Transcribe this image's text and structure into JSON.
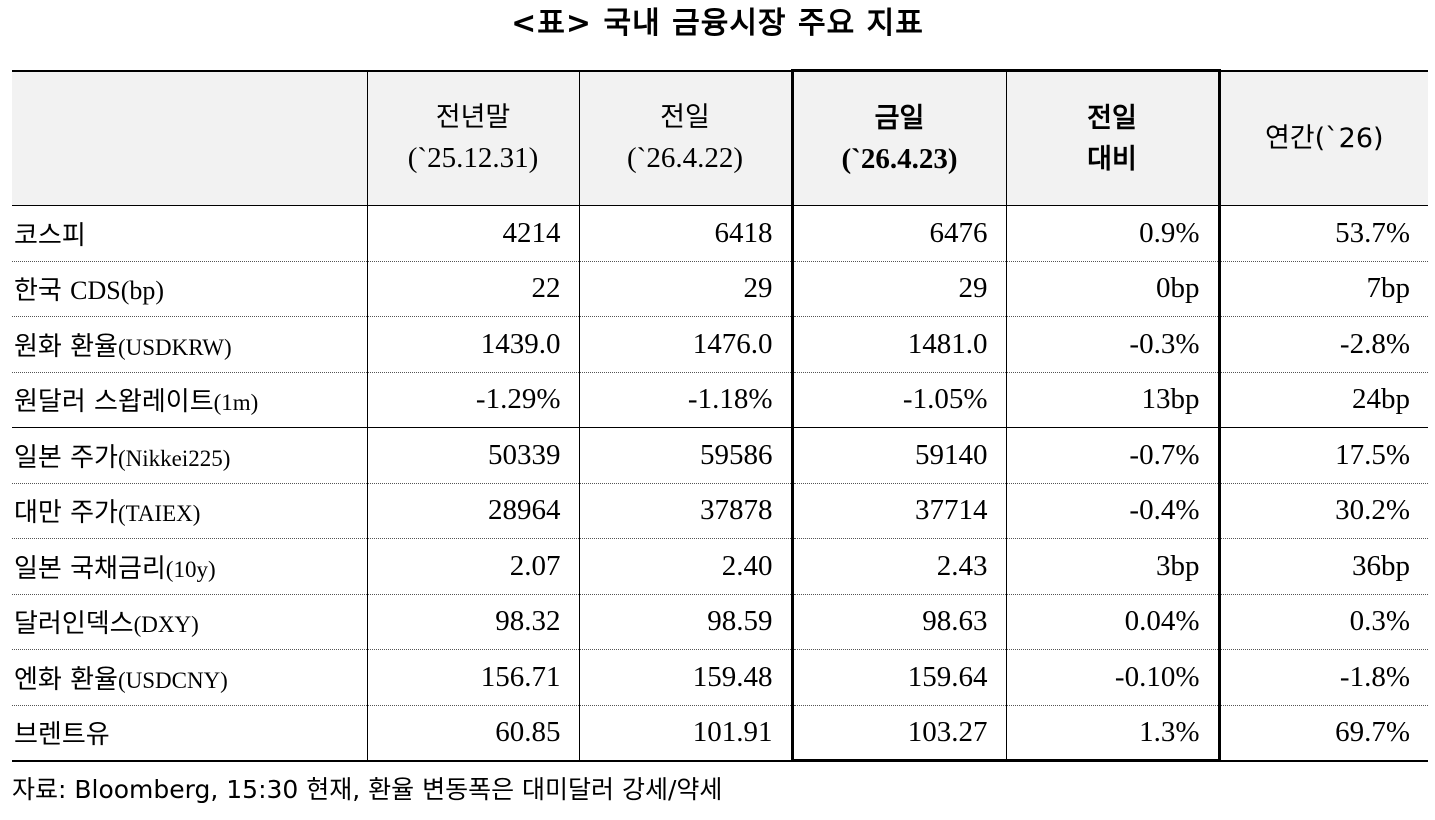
{
  "title": "<표> 국내 금융시장 주요 지표",
  "columns": [
    {
      "line1": "전년말",
      "line2": "(`25.12.31)"
    },
    {
      "line1": "전일",
      "line2": "(`26.4.22)"
    },
    {
      "line1": "금일",
      "line2": "(`26.4.23)"
    },
    {
      "line1": "전일",
      "line2": "대비"
    },
    {
      "line1": "연간(`26)",
      "line2": ""
    }
  ],
  "rows": [
    {
      "name_ko": "코스피",
      "name_en": "",
      "prev_year": "4214",
      "prev_day": "6418",
      "today": "6476",
      "change": "0.9%",
      "ytd": "53.7%"
    },
    {
      "name_ko": "한국 ",
      "name_en": "CDS(bp)",
      "prev_year": "22",
      "prev_day": "29",
      "today": "29",
      "change": "0bp",
      "ytd": "7bp"
    },
    {
      "name_ko": "원화 환율",
      "name_en": "(USDKRW)",
      "prev_year": "1439.0",
      "prev_day": "1476.0",
      "today": "1481.0",
      "change": "-0.3%",
      "ytd": "-2.8%"
    },
    {
      "name_ko": "원달러 스왑레이트",
      "name_en": "(1m)",
      "prev_year": "-1.29%",
      "prev_day": "-1.18%",
      "today": "-1.05%",
      "change": "13bp",
      "ytd": "24bp"
    },
    {
      "name_ko": "일본 주가",
      "name_en": "(Nikkei225)",
      "prev_year": "50339",
      "prev_day": "59586",
      "today": "59140",
      "change": "-0.7%",
      "ytd": "17.5%"
    },
    {
      "name_ko": "대만 주가",
      "name_en": "(TAIEX)",
      "prev_year": "28964",
      "prev_day": "37878",
      "today": "37714",
      "change": "-0.4%",
      "ytd": "30.2%"
    },
    {
      "name_ko": "일본 국채금리",
      "name_en": "(10y)",
      "prev_year": "2.07",
      "prev_day": "2.40",
      "today": "2.43",
      "change": "3bp",
      "ytd": "36bp"
    },
    {
      "name_ko": "달러인덱스",
      "name_en": "(DXY)",
      "prev_year": "98.32",
      "prev_day": "98.59",
      "today": "98.63",
      "change": "0.04%",
      "ytd": "0.3%"
    },
    {
      "name_ko": "엔화 환율",
      "name_en": "(USDCNY)",
      "prev_year": "156.71",
      "prev_day": "159.48",
      "today": "159.64",
      "change": "-0.10%",
      "ytd": "-1.8%"
    },
    {
      "name_ko": "브렌트유",
      "name_en": "",
      "prev_year": "60.85",
      "prev_day": "101.91",
      "today": "103.27",
      "change": "1.3%",
      "ytd": "69.7%"
    }
  ],
  "source": "자료: Bloomberg, 15:30 현재, 환율 변동폭은 대미달러 강세/약세",
  "colors": {
    "header_bg": "#f2f2f2",
    "border": "#000000",
    "row_divider": "#555555"
  }
}
